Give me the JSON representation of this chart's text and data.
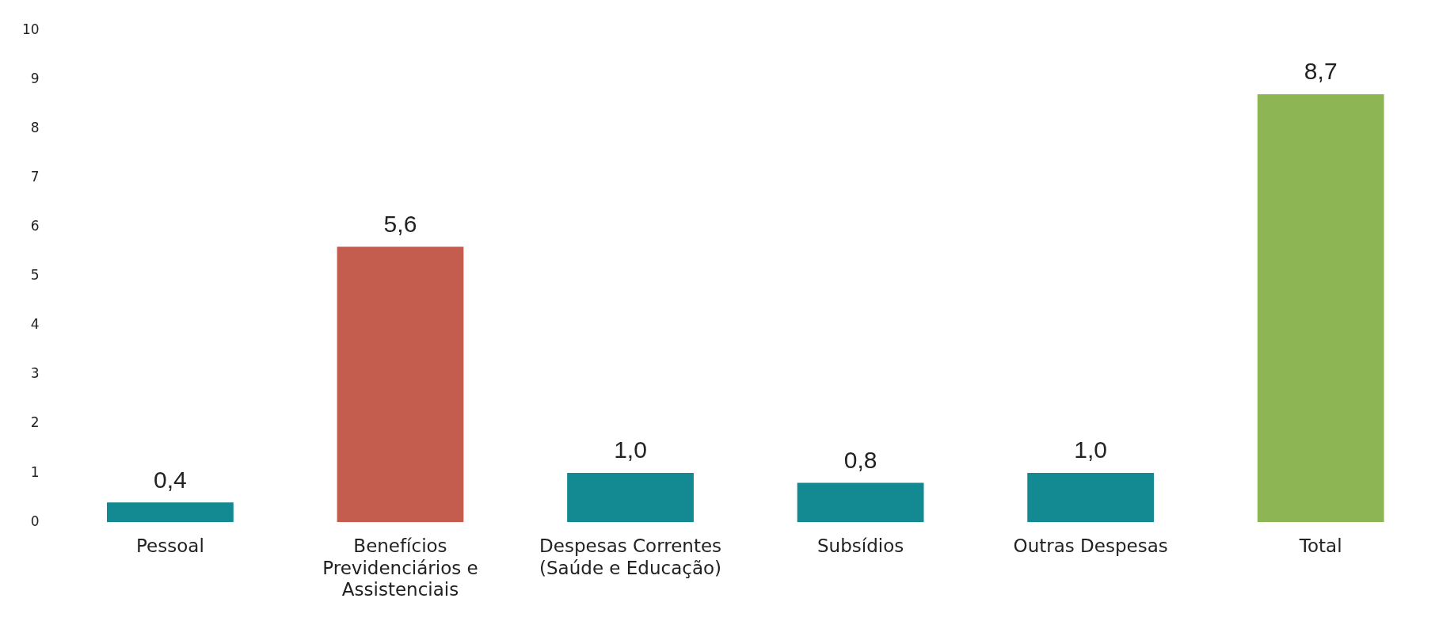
{
  "chart_data": {
    "type": "bar",
    "categories": [
      "Pessoal",
      "Benefícios Previdenciários e Assistenciais",
      "Despesas Correntes (Saúde e Educação)",
      "Subsídios",
      "Outras Despesas",
      "Total"
    ],
    "values": [
      0.4,
      5.6,
      1.0,
      0.8,
      1.0,
      8.7
    ],
    "value_labels": [
      "0,4",
      "5,6",
      "1,0",
      "0,8",
      "1,0",
      "8,7"
    ],
    "colors": [
      "#138a92",
      "#c55d4f",
      "#138a92",
      "#138a92",
      "#138a92",
      "#8db553"
    ],
    "ylim": [
      0,
      10
    ],
    "yticks": [
      0,
      1,
      2,
      3,
      4,
      5,
      6,
      7,
      8,
      9,
      10
    ],
    "grid": false,
    "legend": false
  }
}
